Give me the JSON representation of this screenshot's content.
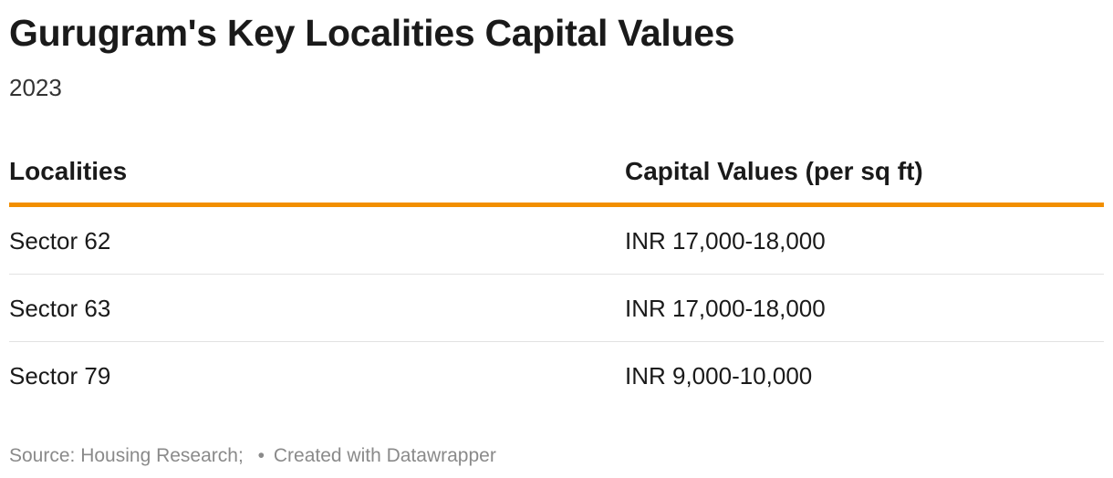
{
  "chart_data": {
    "type": "table",
    "title": "Gurugram's Key Localities Capital Values",
    "subtitle": "2023",
    "columns": [
      "Localities",
      "Capital Values (per sq ft)"
    ],
    "rows": [
      [
        "Sector 62",
        "INR 17,000-18,000"
      ],
      [
        "Sector 63",
        "INR 17,000-18,000"
      ],
      [
        "Sector 79",
        "INR 9,000-10,000"
      ]
    ],
    "header_rule_color": "#f28f00"
  },
  "footer": {
    "source": "Source: Housing Research;",
    "separator": "•",
    "credit": "Created with Datawrapper"
  }
}
